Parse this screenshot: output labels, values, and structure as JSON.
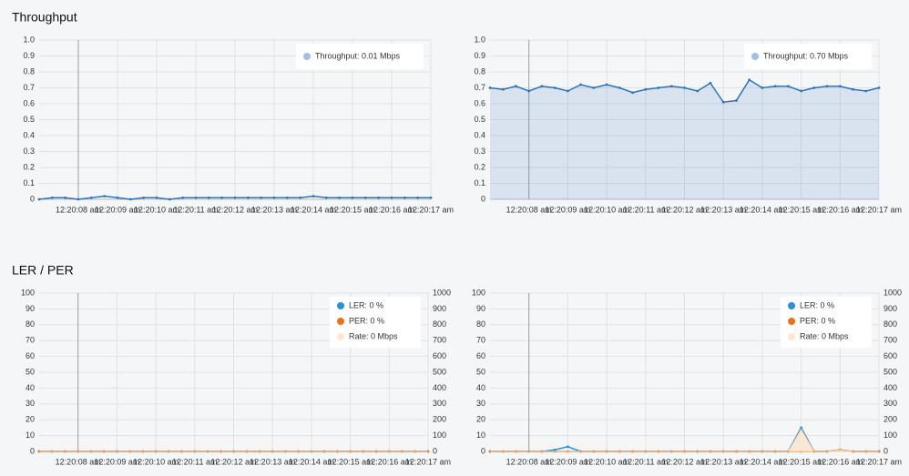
{
  "sections": [
    {
      "title": "Throughput"
    },
    {
      "title": "LER / PER"
    }
  ],
  "chart_data": [
    {
      "type": "line",
      "area": false,
      "grid": true,
      "categories": [
        null,
        null,
        null,
        "12:20:08 am",
        null,
        null,
        "12:20:09 am",
        null,
        null,
        "12:20:10 am",
        null,
        null,
        "12:20:11 am",
        null,
        null,
        "12:20:12 am",
        null,
        null,
        "12:20:13 am",
        null,
        null,
        "12:20:14 am",
        null,
        null,
        "12:20:15 am",
        null,
        null,
        "12:20:16 am",
        null,
        null,
        "12:20:17 am"
      ],
      "ylim": [
        0,
        1
      ],
      "yticks": [
        0,
        0.1,
        0.2,
        0.3,
        0.4,
        0.5,
        0.6,
        0.7,
        0.8,
        0.9,
        {
          "value": 1,
          "label": "1.0"
        }
      ],
      "series": [
        {
          "name": "Throughput: 0.01 Mbps",
          "color": "#2d74b5",
          "legend_color": "#9fc0e2",
          "values": [
            0,
            0.01,
            0.01,
            0,
            0.01,
            0.02,
            0.01,
            0,
            0.01,
            0.01,
            0,
            0.01,
            0.01,
            0.01,
            0.01,
            0.01,
            0.01,
            0.01,
            0.01,
            0.01,
            0.01,
            0.02,
            0.01,
            0.01,
            0.01,
            0.01,
            0.01,
            0.01,
            0.01,
            0.01,
            0.01
          ]
        }
      ]
    },
    {
      "type": "line",
      "area": true,
      "grid": true,
      "categories": [
        null,
        null,
        null,
        "12:20:08 am",
        null,
        null,
        "12:20:09 am",
        null,
        null,
        "12:20:10 am",
        null,
        null,
        "12:20:11 am",
        null,
        null,
        "12:20:12 am",
        null,
        null,
        "12:20:13 am",
        null,
        null,
        "12:20:14 am",
        null,
        null,
        "12:20:15 am",
        null,
        null,
        "12:20:16 am",
        null,
        null,
        "12:20:17 am"
      ],
      "ylim": [
        0,
        1
      ],
      "yticks": [
        0,
        0.1,
        0.2,
        0.3,
        0.4,
        0.5,
        0.6,
        0.7,
        0.8,
        0.9,
        {
          "value": 1,
          "label": "1.0"
        }
      ],
      "series": [
        {
          "name": "Throughput: 0.70 Mbps",
          "color": "#2d74b5",
          "legend_color": "#9fc0e2",
          "values": [
            0.7,
            0.69,
            0.71,
            0.68,
            0.71,
            0.7,
            0.68,
            0.72,
            0.7,
            0.72,
            0.7,
            0.67,
            0.69,
            0.7,
            0.71,
            0.7,
            0.68,
            0.73,
            0.61,
            0.62,
            0.75,
            0.7,
            0.71,
            0.71,
            0.68,
            0.7,
            0.71,
            0.71,
            0.69,
            0.68,
            0.7
          ]
        }
      ]
    },
    {
      "type": "line",
      "area": false,
      "grid": true,
      "categories": [
        null,
        null,
        null,
        "12:20:08 am",
        null,
        null,
        "12:20:09 am",
        null,
        null,
        "12:20:10 am",
        null,
        null,
        "12:20:11 am",
        null,
        null,
        "12:20:12 am",
        null,
        null,
        "12:20:13 am",
        null,
        null,
        "12:20:14 am",
        null,
        null,
        "12:20:15 am",
        null,
        null,
        "12:20:16 am",
        null,
        null,
        "12:20:17 am"
      ],
      "ylim": [
        0,
        100
      ],
      "yticks": [
        0,
        10,
        20,
        30,
        40,
        50,
        60,
        70,
        80,
        90,
        100
      ],
      "y2lim": [
        0,
        1000
      ],
      "y2ticks": [
        0,
        100,
        200,
        300,
        400,
        500,
        600,
        700,
        800,
        900,
        1000
      ],
      "series": [
        {
          "name": "LER: 0 %",
          "color": "#2d8fd5",
          "values": [
            0,
            0,
            0,
            0,
            0,
            0,
            0,
            0,
            0,
            0,
            0,
            0,
            0,
            0,
            0,
            0,
            0,
            0,
            0,
            0,
            0,
            0,
            0,
            0,
            0,
            0,
            0,
            0,
            0,
            0,
            0
          ]
        },
        {
          "name": "PER: 0 %",
          "color": "#e8731a",
          "values": [
            0,
            0,
            0,
            0,
            0,
            0,
            0,
            0,
            0,
            0,
            0,
            0,
            0,
            0,
            0,
            0,
            0,
            0,
            0,
            0,
            0,
            0,
            0,
            0,
            0,
            0,
            0,
            0,
            0,
            0,
            0
          ]
        },
        {
          "name": "Rate: 0 Mbps",
          "color": "#fbe7d3",
          "axis": "y2",
          "area": true,
          "values": [
            0,
            0,
            0,
            0,
            0,
            0,
            0,
            0,
            0,
            0,
            0,
            0,
            0,
            0,
            0,
            0,
            0,
            0,
            0,
            0,
            0,
            0,
            0,
            0,
            0,
            0,
            0,
            0,
            0,
            0,
            0
          ]
        }
      ]
    },
    {
      "type": "line",
      "area": false,
      "grid": true,
      "categories": [
        null,
        null,
        null,
        "12:20:08 am",
        null,
        null,
        "12:20:09 am",
        null,
        null,
        "12:20:10 am",
        null,
        null,
        "12:20:11 am",
        null,
        null,
        "12:20:12 am",
        null,
        null,
        "12:20:13 am",
        null,
        null,
        "12:20:14 am",
        null,
        null,
        "12:20:15 am",
        null,
        null,
        "12:20:16 am",
        null,
        null,
        "12:20:17 am"
      ],
      "ylim": [
        0,
        100
      ],
      "yticks": [
        0,
        10,
        20,
        30,
        40,
        50,
        60,
        70,
        80,
        90,
        100
      ],
      "y2lim": [
        0,
        1000
      ],
      "y2ticks": [
        0,
        100,
        200,
        300,
        400,
        500,
        600,
        700,
        800,
        900,
        1000
      ],
      "series": [
        {
          "name": "LER: 0 %",
          "color": "#2d8fd5",
          "values": [
            0,
            0,
            0,
            0,
            0,
            1,
            3,
            0,
            0,
            0,
            0,
            0,
            0,
            0,
            0,
            0,
            0,
            0,
            0,
            0,
            0,
            0,
            0,
            0,
            15,
            0,
            0,
            1,
            0,
            0,
            0
          ]
        },
        {
          "name": "PER: 0 %",
          "color": "#e8731a",
          "values": [
            0,
            0,
            0,
            0,
            0,
            0,
            0,
            0,
            0,
            0,
            0,
            0,
            0,
            0,
            0,
            0,
            0,
            0,
            0,
            0,
            0,
            0,
            0,
            0,
            0,
            0,
            0,
            1,
            0,
            0,
            0
          ]
        },
        {
          "name": "Rate: 0 Mbps",
          "color": "#fbe7d3",
          "axis": "y2",
          "area": true,
          "values": [
            0,
            0,
            0,
            0,
            0,
            0,
            0,
            0,
            0,
            0,
            0,
            0,
            0,
            0,
            0,
            0,
            0,
            0,
            0,
            0,
            0,
            0,
            0,
            0,
            140,
            0,
            0,
            10,
            0,
            0,
            0
          ]
        }
      ]
    }
  ]
}
